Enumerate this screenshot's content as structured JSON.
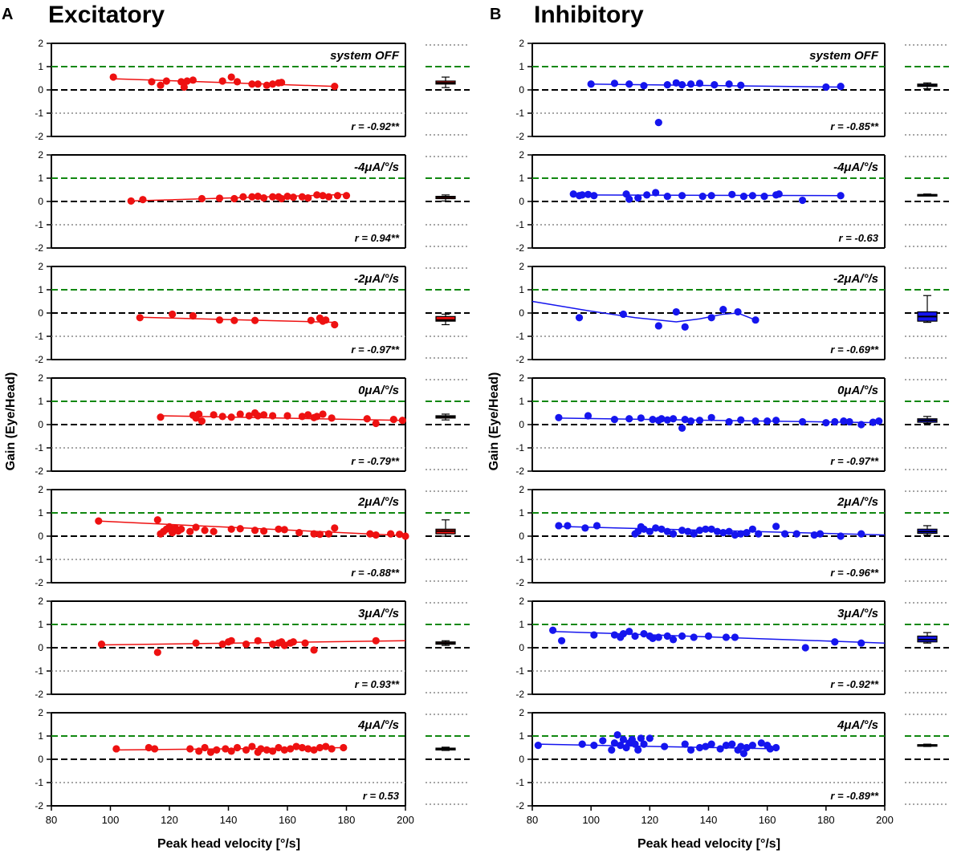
{
  "columns": [
    {
      "letter": "A",
      "title": "Excitatory"
    },
    {
      "letter": "B",
      "title": "Inhibitory"
    }
  ],
  "y_axis_label": "Gain (Eye/Head)",
  "x_axis_label": "Peak head velocity [°/s]",
  "colors": {
    "excitatory": "#ee1111",
    "inhibitory": "#1515ee",
    "unity_gain": "#118811",
    "zero_gain": "#000000",
    "minus_one": "#888888"
  },
  "chart_data": [
    {
      "type": "scatter",
      "panel": "A",
      "condition": "system OFF",
      "r_label": "r = -0.92**",
      "x": [
        101,
        114,
        117,
        119,
        124,
        125,
        126,
        128,
        138,
        141,
        143,
        148,
        150,
        153,
        155,
        157,
        158,
        176
      ],
      "y": [
        0.55,
        0.35,
        0.2,
        0.38,
        0.35,
        0.12,
        0.38,
        0.42,
        0.38,
        0.55,
        0.35,
        0.25,
        0.25,
        0.2,
        0.25,
        0.3,
        0.32,
        0.15
      ],
      "fit": [
        [
          101,
          0.48
        ],
        [
          176,
          0.15
        ]
      ],
      "box": {
        "min": 0.1,
        "q1": 0.25,
        "median": 0.3,
        "q3": 0.38,
        "max": 0.55
      },
      "xlim": [
        80,
        200
      ],
      "ylim": [
        -2,
        2
      ],
      "yticks": [
        -2,
        -1,
        0,
        1,
        2
      ]
    },
    {
      "type": "scatter",
      "panel": "A",
      "condition": "-4μA/°/s",
      "r_label": "r = 0.94**",
      "x": [
        107,
        111,
        131,
        137,
        142,
        145,
        148,
        150,
        152,
        155,
        157,
        158,
        160,
        162,
        165,
        167,
        170,
        172,
        174,
        177,
        180
      ],
      "y": [
        0.02,
        0.08,
        0.12,
        0.14,
        0.12,
        0.2,
        0.2,
        0.22,
        0.15,
        0.2,
        0.2,
        0.12,
        0.22,
        0.18,
        0.2,
        0.15,
        0.28,
        0.25,
        0.2,
        0.25,
        0.25
      ],
      "fit": [
        [
          107,
          0.02
        ],
        [
          180,
          0.3
        ]
      ],
      "box": {
        "min": 0.02,
        "q1": 0.12,
        "median": 0.18,
        "q3": 0.22,
        "max": 0.28
      },
      "xlim": [
        80,
        200
      ],
      "ylim": [
        -2,
        2
      ],
      "yticks": [
        -2,
        -1,
        0,
        1,
        2
      ]
    },
    {
      "type": "scatter",
      "panel": "A",
      "condition": "-2μA/°/s",
      "r_label": "r = -0.97**",
      "x": [
        110,
        121,
        128,
        137,
        142,
        149,
        168,
        171,
        172,
        173,
        176
      ],
      "y": [
        -0.2,
        -0.05,
        -0.12,
        -0.3,
        -0.32,
        -0.32,
        -0.32,
        -0.22,
        -0.35,
        -0.3,
        -0.5
      ],
      "fit": [
        [
          110,
          -0.18
        ],
        [
          176,
          -0.4
        ]
      ],
      "box": {
        "min": -0.5,
        "q1": -0.35,
        "median": -0.3,
        "q3": -0.15,
        "max": -0.05
      },
      "xlim": [
        80,
        200
      ],
      "ylim": [
        -2,
        2
      ],
      "yticks": [
        -2,
        -1,
        0,
        1,
        2
      ]
    },
    {
      "type": "scatter",
      "panel": "A",
      "condition": "0μA/°/s",
      "r_label": "r = -0.79**",
      "x": [
        117,
        128,
        129,
        130,
        131,
        135,
        138,
        141,
        144,
        147,
        149,
        150,
        152,
        155,
        160,
        165,
        167,
        169,
        170,
        172,
        175,
        187,
        190,
        196,
        199
      ],
      "y": [
        0.32,
        0.4,
        0.28,
        0.45,
        0.15,
        0.42,
        0.35,
        0.32,
        0.45,
        0.38,
        0.5,
        0.38,
        0.42,
        0.38,
        0.38,
        0.35,
        0.42,
        0.3,
        0.35,
        0.45,
        0.28,
        0.25,
        0.05,
        0.22,
        0.18
      ],
      "fit": [
        [
          117,
          0.38
        ],
        [
          199,
          0.18
        ]
      ],
      "box": {
        "min": 0.2,
        "q1": 0.28,
        "median": 0.33,
        "q3": 0.38,
        "max": 0.45
      },
      "xlim": [
        80,
        200
      ],
      "ylim": [
        -2,
        2
      ],
      "yticks": [
        -2,
        -1,
        0,
        1,
        2
      ]
    },
    {
      "type": "scatter",
      "panel": "A",
      "condition": "2μA/°/s",
      "r_label": "r = -0.88**",
      "x": [
        96,
        116,
        117,
        118,
        119,
        120,
        121,
        122,
        123,
        124,
        127,
        129,
        132,
        135,
        141,
        144,
        149,
        152,
        157,
        159,
        164,
        169,
        171,
        174,
        176,
        188,
        190,
        195,
        198,
        200
      ],
      "y": [
        0.65,
        0.7,
        0.1,
        0.2,
        0.3,
        0.4,
        0.15,
        0.35,
        0.22,
        0.3,
        0.2,
        0.38,
        0.25,
        0.2,
        0.3,
        0.32,
        0.25,
        0.22,
        0.3,
        0.28,
        0.15,
        0.1,
        0.08,
        0.1,
        0.35,
        0.1,
        0.05,
        0.1,
        0.08,
        0.0
      ],
      "fit": [
        [
          96,
          0.65
        ],
        [
          200,
          0.02
        ]
      ],
      "box": {
        "min": 0.0,
        "q1": 0.1,
        "median": 0.22,
        "q3": 0.3,
        "max": 0.7
      },
      "xlim": [
        80,
        200
      ],
      "ylim": [
        -2,
        2
      ],
      "yticks": [
        -2,
        -1,
        0,
        1,
        2
      ]
    },
    {
      "type": "scatter",
      "panel": "A",
      "condition": "3μA/°/s",
      "r_label": "r = 0.93**",
      "x": [
        97,
        116,
        129,
        138,
        140,
        141,
        146,
        150,
        155,
        157,
        158,
        159,
        161,
        162,
        166,
        169,
        190
      ],
      "y": [
        0.15,
        -0.2,
        0.2,
        0.15,
        0.25,
        0.3,
        0.15,
        0.3,
        0.15,
        0.2,
        0.25,
        0.1,
        0.2,
        0.25,
        0.2,
        -0.1,
        0.3
      ],
      "fit": [
        [
          97,
          0.12
        ],
        [
          200,
          0.3
        ]
      ],
      "box": {
        "min": 0.1,
        "q1": 0.15,
        "median": 0.2,
        "q3": 0.25,
        "max": 0.3
      },
      "xlim": [
        80,
        200
      ],
      "ylim": [
        -2,
        2
      ],
      "yticks": [
        -2,
        -1,
        0,
        1,
        2
      ]
    },
    {
      "type": "scatter",
      "panel": "A",
      "condition": "4μA/°/s",
      "r_label": "r = 0.53",
      "x": [
        102,
        113,
        115,
        127,
        130,
        132,
        134,
        136,
        139,
        141,
        143,
        146,
        148,
        150,
        151,
        153,
        155,
        157,
        159,
        161,
        163,
        165,
        167,
        169,
        171,
        173,
        175,
        179
      ],
      "y": [
        0.45,
        0.5,
        0.45,
        0.45,
        0.35,
        0.5,
        0.3,
        0.4,
        0.45,
        0.35,
        0.5,
        0.4,
        0.55,
        0.3,
        0.45,
        0.4,
        0.35,
        0.5,
        0.4,
        0.45,
        0.55,
        0.5,
        0.45,
        0.4,
        0.5,
        0.55,
        0.45,
        0.5
      ],
      "fit": [
        [
          102,
          0.4
        ],
        [
          179,
          0.5
        ]
      ],
      "box": {
        "min": 0.38,
        "q1": 0.4,
        "median": 0.45,
        "q3": 0.48,
        "max": 0.52
      },
      "xlim": [
        80,
        200
      ],
      "ylim": [
        -2,
        2
      ],
      "yticks": [
        -2,
        -1,
        0,
        1,
        2
      ]
    },
    {
      "type": "scatter",
      "panel": "B",
      "condition": "system OFF",
      "r_label": "r = -0.85**",
      "x": [
        100,
        108,
        113,
        118,
        123,
        126,
        129,
        131,
        134,
        137,
        142,
        147,
        151,
        180,
        185
      ],
      "y": [
        0.25,
        0.28,
        0.25,
        0.18,
        -1.4,
        0.22,
        0.3,
        0.22,
        0.25,
        0.28,
        0.22,
        0.25,
        0.2,
        0.12,
        0.15
      ],
      "fit": [
        [
          100,
          0.25
        ],
        [
          185,
          0.12
        ]
      ],
      "box": {
        "min": 0.05,
        "q1": 0.15,
        "median": 0.2,
        "q3": 0.25,
        "max": 0.3
      },
      "xlim": [
        80,
        200
      ],
      "ylim": [
        -2,
        2
      ],
      "yticks": [
        -2,
        -1,
        0,
        1,
        2
      ]
    },
    {
      "type": "scatter",
      "panel": "B",
      "condition": "-4μA/°/s",
      "r_label": "r = -0.63",
      "x": [
        94,
        96,
        97,
        99,
        101,
        112,
        113,
        116,
        119,
        122,
        126,
        131,
        138,
        141,
        148,
        152,
        155,
        159,
        163,
        164,
        172,
        185
      ],
      "y": [
        0.32,
        0.25,
        0.28,
        0.3,
        0.25,
        0.32,
        0.1,
        0.15,
        0.28,
        0.38,
        0.22,
        0.25,
        0.22,
        0.25,
        0.3,
        0.22,
        0.25,
        0.22,
        0.28,
        0.32,
        0.05,
        0.25
      ],
      "fit": [
        [
          94,
          0.28
        ],
        [
          185,
          0.25
        ]
      ],
      "box": {
        "min": 0.25,
        "q1": 0.27,
        "median": 0.28,
        "q3": 0.3,
        "max": 0.32
      },
      "xlim": [
        80,
        200
      ],
      "ylim": [
        -2,
        2
      ],
      "yticks": [
        -2,
        -1,
        0,
        1,
        2
      ]
    },
    {
      "type": "scatter",
      "panel": "B",
      "condition": "-2μA/°/s",
      "r_label": "r = -0.69**",
      "x": [
        96,
        111,
        123,
        129,
        132,
        141,
        145,
        150,
        156
      ],
      "y": [
        -0.2,
        -0.05,
        -0.55,
        0.05,
        -0.6,
        -0.2,
        0.15,
        0.05,
        -0.3
      ],
      "fit": [
        [
          80,
          0.5
        ],
        [
          99,
          0.1
        ],
        [
          115,
          -0.2
        ],
        [
          129,
          -0.38
        ],
        [
          137,
          -0.25
        ],
        [
          145,
          -0.05
        ],
        [
          150,
          0.0
        ],
        [
          156,
          -0.3
        ]
      ],
      "box": {
        "min": -0.4,
        "q1": -0.35,
        "median": -0.15,
        "q3": 0.05,
        "max": 0.75
      },
      "xlim": [
        80,
        200
      ],
      "ylim": [
        -2,
        2
      ],
      "yticks": [
        -2,
        -1,
        0,
        1,
        2
      ]
    },
    {
      "type": "scatter",
      "panel": "B",
      "condition": "0μA/°/s",
      "r_label": "r = -0.97**",
      "x": [
        89,
        99,
        108,
        113,
        117,
        121,
        123,
        124,
        126,
        128,
        131,
        132,
        134,
        137,
        141,
        147,
        151,
        156,
        160,
        163,
        172,
        180,
        183,
        186,
        188,
        192,
        196,
        198
      ],
      "y": [
        0.3,
        0.38,
        0.22,
        0.25,
        0.28,
        0.22,
        0.18,
        0.25,
        0.2,
        0.25,
        -0.15,
        0.22,
        0.15,
        0.18,
        0.3,
        0.12,
        0.2,
        0.15,
        0.15,
        0.18,
        0.12,
        0.08,
        0.12,
        0.15,
        0.12,
        0.0,
        0.1,
        0.15
      ],
      "fit": [
        [
          89,
          0.28
        ],
        [
          198,
          0.08
        ]
      ],
      "box": {
        "min": 0.05,
        "q1": 0.1,
        "median": 0.18,
        "q3": 0.25,
        "max": 0.35
      },
      "xlim": [
        80,
        200
      ],
      "ylim": [
        -2,
        2
      ],
      "yticks": [
        -2,
        -1,
        0,
        1,
        2
      ]
    },
    {
      "type": "scatter",
      "panel": "B",
      "condition": "2μA/°/s",
      "r_label": "r = -0.96**",
      "x": [
        89,
        92,
        98,
        102,
        115,
        116,
        117,
        118,
        120,
        122,
        124,
        126,
        128,
        131,
        133,
        135,
        137,
        139,
        141,
        143,
        145,
        147,
        149,
        151,
        153,
        155,
        157,
        163,
        166,
        170,
        176,
        178,
        185,
        192
      ],
      "y": [
        0.45,
        0.45,
        0.35,
        0.45,
        0.1,
        0.2,
        0.4,
        0.3,
        0.2,
        0.35,
        0.3,
        0.2,
        0.1,
        0.25,
        0.2,
        0.1,
        0.25,
        0.3,
        0.3,
        0.2,
        0.15,
        0.2,
        0.05,
        0.1,
        0.15,
        0.3,
        0.1,
        0.42,
        0.1,
        0.1,
        0.05,
        0.1,
        0.0,
        0.1
      ],
      "fit": [
        [
          89,
          0.42
        ],
        [
          200,
          0.05
        ]
      ],
      "box": {
        "min": 0.05,
        "q1": 0.12,
        "median": 0.2,
        "q3": 0.3,
        "max": 0.45
      },
      "xlim": [
        80,
        200
      ],
      "ylim": [
        -2,
        2
      ],
      "yticks": [
        -2,
        -1,
        0,
        1,
        2
      ]
    },
    {
      "type": "scatter",
      "panel": "B",
      "condition": "3μA/°/s",
      "r_label": "r = -0.92**",
      "x": [
        87,
        90,
        101,
        108,
        110,
        111,
        113,
        115,
        118,
        120,
        121,
        123,
        126,
        128,
        131,
        135,
        140,
        146,
        149,
        173,
        183,
        192
      ],
      "y": [
        0.75,
        0.3,
        0.55,
        0.55,
        0.45,
        0.6,
        0.7,
        0.5,
        0.6,
        0.5,
        0.4,
        0.45,
        0.5,
        0.35,
        0.5,
        0.45,
        0.5,
        0.45,
        0.45,
        0.0,
        0.25,
        0.2
      ],
      "fit": [
        [
          87,
          0.7
        ],
        [
          200,
          0.2
        ]
      ],
      "box": {
        "min": 0.2,
        "q1": 0.25,
        "median": 0.35,
        "q3": 0.5,
        "max": 0.65
      },
      "xlim": [
        80,
        200
      ],
      "ylim": [
        -2,
        2
      ],
      "yticks": [
        -2,
        -1,
        0,
        1,
        2
      ]
    },
    {
      "type": "scatter",
      "panel": "B",
      "condition": "4μA/°/s",
      "r_label": "r = -0.89**",
      "x": [
        82,
        97,
        101,
        104,
        107,
        108,
        109,
        110,
        111,
        112,
        113,
        114,
        115,
        116,
        117,
        118,
        120,
        125,
        132,
        134,
        137,
        139,
        141,
        144,
        146,
        148,
        150,
        151,
        152,
        153,
        155,
        158,
        160,
        161,
        163
      ],
      "y": [
        0.6,
        0.65,
        0.6,
        0.8,
        0.4,
        0.7,
        1.05,
        0.6,
        0.85,
        0.5,
        0.7,
        0.85,
        0.65,
        0.4,
        0.9,
        0.65,
        0.9,
        0.55,
        0.65,
        0.4,
        0.5,
        0.55,
        0.65,
        0.45,
        0.6,
        0.65,
        0.4,
        0.55,
        0.25,
        0.5,
        0.6,
        0.7,
        0.6,
        0.45,
        0.5
      ],
      "fit": [
        [
          82,
          0.65
        ],
        [
          163,
          0.45
        ]
      ],
      "box": {
        "min": 0.55,
        "q1": 0.57,
        "median": 0.6,
        "q3": 0.63,
        "max": 0.65
      },
      "xlim": [
        80,
        200
      ],
      "ylim": [
        -2,
        2
      ],
      "yticks": [
        -2,
        -1,
        0,
        1,
        2
      ]
    }
  ],
  "x_ticks": [
    80,
    100,
    120,
    140,
    160,
    180,
    200
  ]
}
